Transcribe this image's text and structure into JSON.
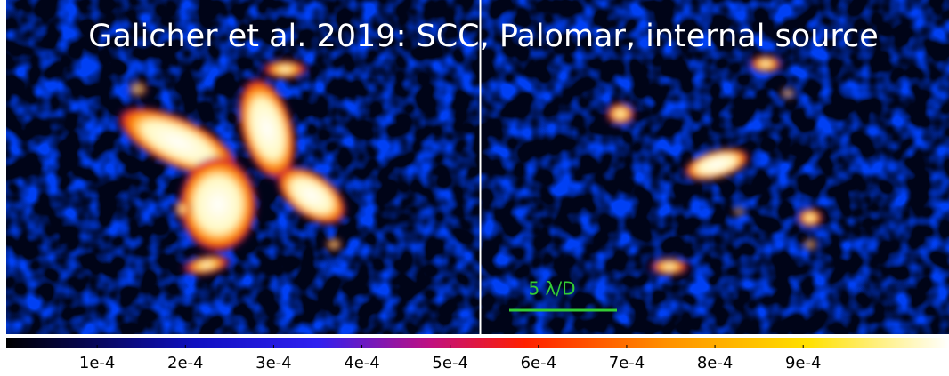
{
  "title": "Galicher et al. 2019: SCC, Palomar, internal source",
  "scale_bar": "5 λ/D",
  "colorbar": {
    "lim": [
      0,
      0.00104
    ],
    "ticks": [
      {
        "value": 0.0001,
        "label": "1e-4"
      },
      {
        "value": 0.0002,
        "label": "2e-4"
      },
      {
        "value": 0.0003,
        "label": "3e-4"
      },
      {
        "value": 0.0004,
        "label": "4e-4"
      },
      {
        "value": 0.0005,
        "label": "5e-4"
      },
      {
        "value": 0.0006,
        "label": "6e-4"
      },
      {
        "value": 0.0007,
        "label": "7e-4"
      },
      {
        "value": 0.0008,
        "label": "8e-4"
      },
      {
        "value": 0.0009,
        "label": "9e-4"
      }
    ]
  }
}
